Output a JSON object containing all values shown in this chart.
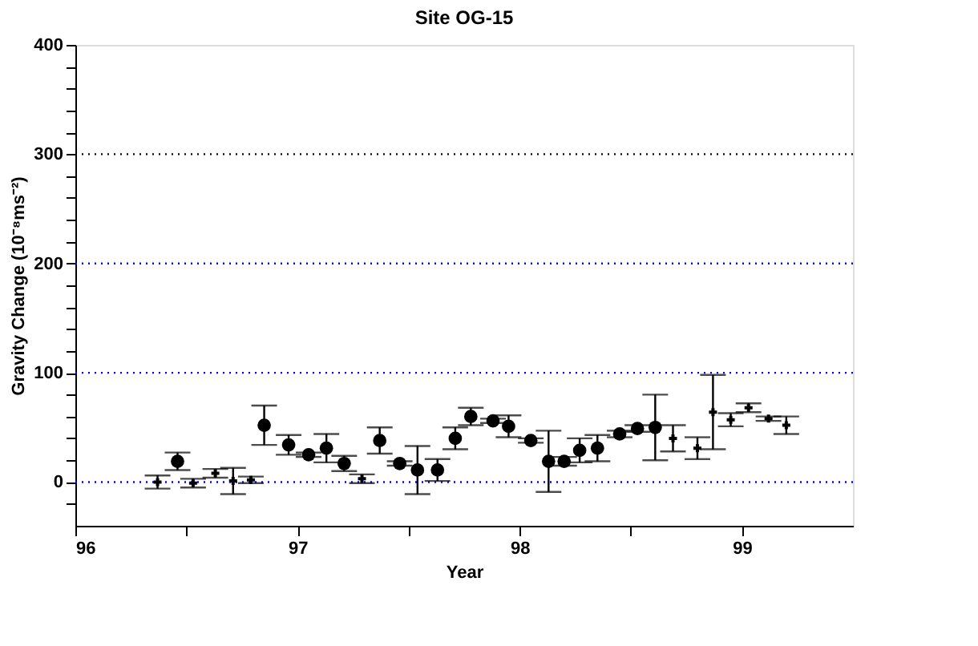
{
  "chart_data": {
    "type": "scatter",
    "title": "Site OG-15",
    "xlabel": "Year",
    "ylabel": "Gravity Change  (10⁻⁸ms⁻²)",
    "xlim": [
      96,
      99.5
    ],
    "xticks": [
      96,
      {
        "value": 96.5,
        "label": null
      },
      97,
      {
        "value": 97.5,
        "label": null
      },
      98,
      {
        "value": 98.5,
        "label": null
      },
      99
    ],
    "ylim": [
      -40,
      400
    ],
    "yticks": [
      {
        "value": -20,
        "label": null
      },
      0,
      {
        "value": 20,
        "label": null
      },
      {
        "value": 40,
        "label": null
      },
      {
        "value": 60,
        "label": null
      },
      {
        "value": 80,
        "label": null
      },
      100,
      {
        "value": 120,
        "label": null
      },
      {
        "value": 140,
        "label": null
      },
      {
        "value": 160,
        "label": null
      },
      {
        "value": 180,
        "label": null
      },
      200,
      {
        "value": 220,
        "label": null
      },
      {
        "value": 240,
        "label": null
      },
      {
        "value": 260,
        "label": null
      },
      {
        "value": 280,
        "label": null
      },
      300,
      {
        "value": 320,
        "label": null
      },
      {
        "value": 340,
        "label": null
      },
      {
        "value": 360,
        "label": null
      },
      {
        "value": 380,
        "label": null
      },
      400
    ],
    "grid": false,
    "ref_lines": [
      {
        "axis": "y",
        "value": 0,
        "color": "#0000ff",
        "line_style": "dotted"
      },
      {
        "axis": "y",
        "value": 100,
        "color": "#0000ff",
        "line_style": "dotted"
      },
      {
        "axis": "y",
        "value": 200,
        "color": "#0000ff",
        "line_style": "dotted"
      },
      {
        "axis": "y",
        "value": 300,
        "color": "#000000",
        "line_style": "dotted"
      }
    ],
    "series": [
      {
        "color": "#000000",
        "marker": "circle",
        "x": [
          96.46,
          96.85,
          96.96,
          97.05,
          97.13,
          97.21,
          97.37,
          97.46,
          97.54,
          97.63,
          97.71,
          97.78,
          97.88,
          97.95,
          98.05,
          98.13,
          98.2,
          98.27,
          98.35,
          98.45,
          98.53,
          98.61
        ],
        "values": [
          19,
          52,
          34,
          25,
          31,
          17,
          38,
          17,
          11,
          11,
          40,
          60,
          56,
          51,
          38,
          19,
          19,
          29,
          31,
          44,
          49,
          50
        ],
        "errors": [
          8,
          18,
          9,
          2,
          13,
          7,
          12,
          2,
          22,
          10,
          10,
          8,
          2,
          10,
          2,
          28,
          4,
          11,
          12,
          3,
          3,
          30
        ]
      },
      {
        "color": "#000000",
        "marker": "cross",
        "x": [
          96.37,
          96.53,
          96.63,
          96.71,
          96.79,
          97.29,
          98.69,
          98.8,
          98.87,
          98.95,
          99.03,
          99.12,
          99.2
        ],
        "values": [
          0,
          -1,
          8,
          1,
          2,
          3,
          40,
          31,
          64,
          57,
          68,
          58,
          52
        ],
        "errors": [
          6,
          4,
          4,
          12,
          3,
          4,
          12,
          10,
          34,
          6,
          4,
          2,
          8
        ]
      }
    ]
  }
}
